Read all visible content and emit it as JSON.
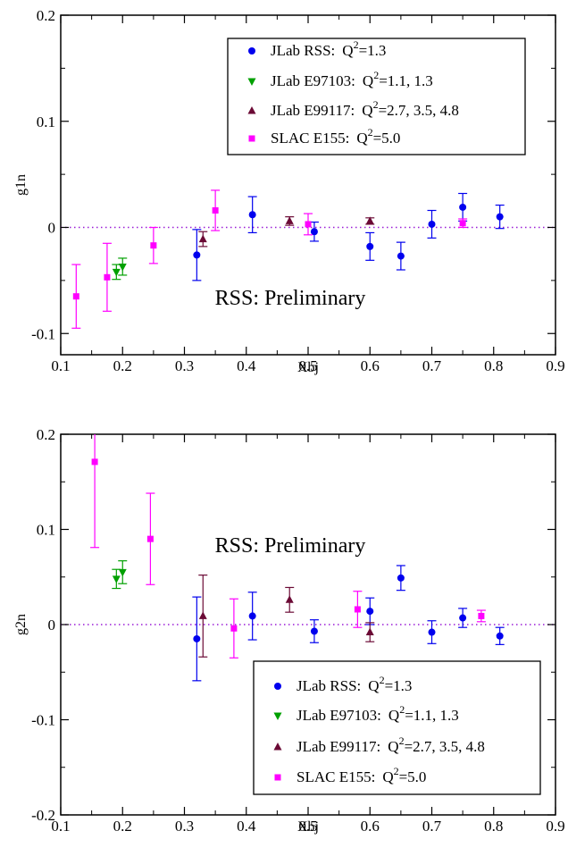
{
  "chart_data": [
    {
      "type": "scatter",
      "ylabel": "g1n",
      "xlabel": "Xbj",
      "xlim": [
        0.1,
        0.9
      ],
      "ylim": [
        -0.12,
        0.2
      ],
      "x_ticks": [
        "0.1",
        "0.2",
        "0.3",
        "0.4",
        "0.5",
        "0.6",
        "0.7",
        "0.8",
        "0.9"
      ],
      "y_ticks": [
        "-0.1",
        "0",
        "0.1",
        "0.2"
      ],
      "annotation": "RSS: Preliminary",
      "legend_position": "top-right",
      "series": [
        {
          "name": "JLab RSS:",
          "q2": "=1.3",
          "marker": "circle",
          "color": "#0000ee",
          "points": [
            {
              "x": 0.32,
              "y": -0.026,
              "err": 0.024
            },
            {
              "x": 0.41,
              "y": 0.012,
              "err": 0.017
            },
            {
              "x": 0.51,
              "y": -0.004,
              "err": 0.009
            },
            {
              "x": 0.6,
              "y": -0.018,
              "err": 0.013
            },
            {
              "x": 0.65,
              "y": -0.027,
              "err": 0.013
            },
            {
              "x": 0.7,
              "y": 0.003,
              "err": 0.013
            },
            {
              "x": 0.75,
              "y": 0.019,
              "err": 0.013
            },
            {
              "x": 0.81,
              "y": 0.01,
              "err": 0.011
            }
          ]
        },
        {
          "name": "JLab E97103:",
          "q2": "=1.1, 1.3",
          "marker": "triangle-down",
          "color": "#00a000",
          "points": [
            {
              "x": 0.19,
              "y": -0.042,
              "err": 0.007
            },
            {
              "x": 0.2,
              "y": -0.037,
              "err": 0.008
            }
          ]
        },
        {
          "name": "JLab E99117:",
          "q2": "=2.7, 3.5, 4.8",
          "marker": "triangle-up",
          "color": "#6b0a35",
          "points": [
            {
              "x": 0.33,
              "y": -0.011,
              "err": 0.007
            },
            {
              "x": 0.47,
              "y": 0.006,
              "err": 0.004
            },
            {
              "x": 0.6,
              "y": 0.006,
              "err": 0.003
            }
          ]
        },
        {
          "name": "SLAC E155:",
          "q2": "=5.0",
          "marker": "square",
          "color": "#ff00ff",
          "points": [
            {
              "x": 0.125,
              "y": -0.065,
              "err": 0.03
            },
            {
              "x": 0.175,
              "y": -0.047,
              "err": 0.032
            },
            {
              "x": 0.25,
              "y": -0.017,
              "err": 0.017
            },
            {
              "x": 0.35,
              "y": 0.016,
              "err": 0.019
            },
            {
              "x": 0.5,
              "y": 0.003,
              "err": 0.01
            },
            {
              "x": 0.75,
              "y": 0.004,
              "err": 0.004
            }
          ]
        }
      ]
    },
    {
      "type": "scatter",
      "ylabel": "g2n",
      "xlabel": "Xbj",
      "xlim": [
        0.1,
        0.9
      ],
      "ylim": [
        -0.2,
        0.2
      ],
      "x_ticks": [
        "0.1",
        "0.2",
        "0.3",
        "0.4",
        "0.5",
        "0.6",
        "0.7",
        "0.8",
        "0.9"
      ],
      "y_ticks": [
        "-0.2",
        "-0.1",
        "0",
        "0.1",
        "0.2"
      ],
      "annotation": "RSS: Preliminary",
      "legend_position": "bottom-right",
      "series": [
        {
          "name": "JLab RSS:",
          "q2": "=1.3",
          "marker": "circle",
          "color": "#0000ee",
          "points": [
            {
              "x": 0.32,
              "y": -0.015,
              "err": 0.044
            },
            {
              "x": 0.41,
              "y": 0.009,
              "err": 0.025
            },
            {
              "x": 0.51,
              "y": -0.007,
              "err": 0.012
            },
            {
              "x": 0.6,
              "y": 0.014,
              "err": 0.014
            },
            {
              "x": 0.65,
              "y": 0.049,
              "err": 0.013
            },
            {
              "x": 0.7,
              "y": -0.008,
              "err": 0.012
            },
            {
              "x": 0.75,
              "y": 0.007,
              "err": 0.01
            },
            {
              "x": 0.81,
              "y": -0.012,
              "err": 0.009
            }
          ]
        },
        {
          "name": "JLab E97103:",
          "q2": "=1.1, 1.3",
          "marker": "triangle-down",
          "color": "#00a000",
          "points": [
            {
              "x": 0.19,
              "y": 0.048,
              "err": 0.01
            },
            {
              "x": 0.2,
              "y": 0.055,
              "err": 0.012
            }
          ]
        },
        {
          "name": "JLab E99117:",
          "q2": "=2.7, 3.5, 4.8",
          "marker": "triangle-up",
          "color": "#6b0a35",
          "points": [
            {
              "x": 0.33,
              "y": 0.009,
              "err": 0.043
            },
            {
              "x": 0.47,
              "y": 0.026,
              "err": 0.013
            },
            {
              "x": 0.6,
              "y": -0.008,
              "err": 0.01
            }
          ]
        },
        {
          "name": "SLAC E155:",
          "q2": "=5.0",
          "marker": "square",
          "color": "#ff00ff",
          "points": [
            {
              "x": 0.155,
              "y": 0.171,
              "err": 0.09
            },
            {
              "x": 0.245,
              "y": 0.09,
              "err": 0.048
            },
            {
              "x": 0.38,
              "y": -0.004,
              "err": 0.031
            },
            {
              "x": 0.58,
              "y": 0.016,
              "err": 0.019
            },
            {
              "x": 0.78,
              "y": 0.009,
              "err": 0.006
            }
          ]
        }
      ]
    }
  ]
}
